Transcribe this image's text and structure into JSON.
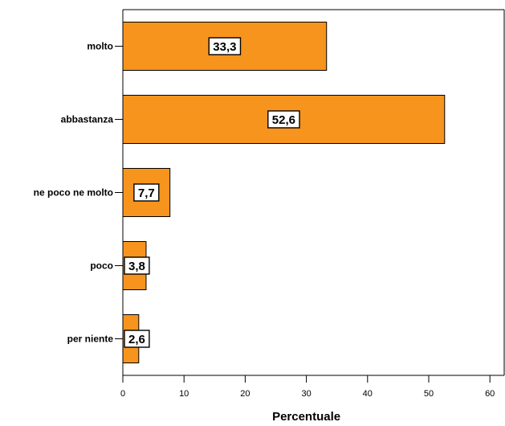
{
  "chart_data": {
    "type": "bar",
    "orientation": "horizontal",
    "categories": [
      "molto",
      "abbastanza",
      "ne poco ne molto",
      "poco",
      "per niente"
    ],
    "values": [
      33.3,
      52.6,
      7.7,
      3.8,
      2.6
    ],
    "data_labels": [
      "33,3",
      "52,6",
      "7,7",
      "3,8",
      "2,6"
    ],
    "xlabel": "Percentuale",
    "ylabel": "",
    "xlim": [
      0,
      60
    ],
    "xticks": [
      0,
      10,
      20,
      30,
      40,
      50,
      60
    ],
    "xtick_labels": [
      "0",
      "10",
      "20",
      "30",
      "40",
      "50",
      "60"
    ],
    "grid": false,
    "legend": "none",
    "bar_color": "#F7941D"
  }
}
